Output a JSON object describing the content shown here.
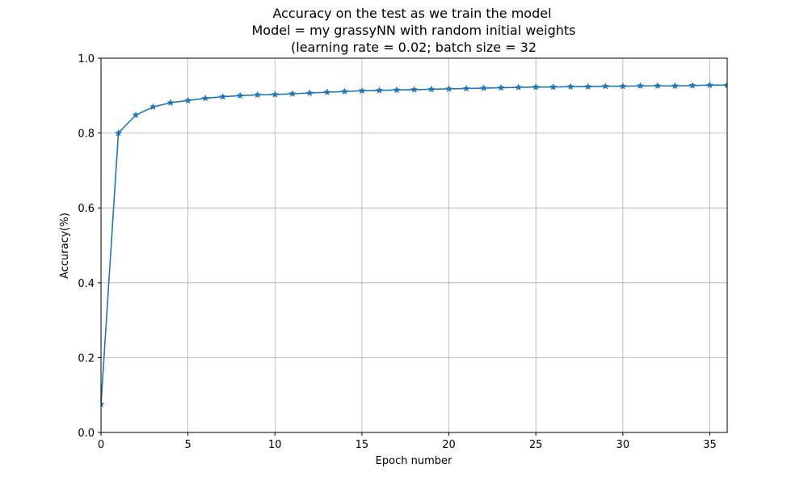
{
  "chart_data": {
    "type": "line",
    "title": [
      "Accuracy on the test as we train the model",
      "Model = my grassyNN with random initial weights",
      "(learning rate = 0.02; batch size = 32"
    ],
    "xlabel": "Epoch number",
    "ylabel": "Accuracy(%)",
    "xlim": [
      0,
      36
    ],
    "ylim": [
      0,
      1.0
    ],
    "xticks": [
      0,
      5,
      10,
      15,
      20,
      25,
      30,
      35
    ],
    "xtick_labels": [
      "0",
      "5",
      "10",
      "15",
      "20",
      "25",
      "30",
      "35"
    ],
    "yticks": [
      0,
      0.2,
      0.4,
      0.6,
      0.8,
      1.0
    ],
    "ytick_labels": [
      "0.0",
      "0.2",
      "0.4",
      "0.6",
      "0.8",
      "1.0"
    ],
    "grid": true,
    "marker": "star",
    "color": "#1f77b4",
    "series": [
      {
        "x": [
          0,
          1,
          2,
          3,
          4,
          5,
          6,
          7,
          8,
          9,
          10,
          11,
          12,
          13,
          14,
          15,
          16,
          17,
          18,
          19,
          20,
          21,
          22,
          23,
          24,
          25,
          26,
          27,
          28,
          29,
          30,
          31,
          32,
          33,
          34,
          35,
          36
        ],
        "values": [
          0.075,
          0.8,
          0.848,
          0.87,
          0.881,
          0.887,
          0.893,
          0.897,
          0.9,
          0.902,
          0.903,
          0.905,
          0.907,
          0.909,
          0.911,
          0.913,
          0.914,
          0.915,
          0.916,
          0.917,
          0.918,
          0.919,
          0.92,
          0.921,
          0.922,
          0.923,
          0.923,
          0.924,
          0.924,
          0.925,
          0.925,
          0.926,
          0.926,
          0.926,
          0.927,
          0.928,
          0.928
        ]
      }
    ]
  }
}
